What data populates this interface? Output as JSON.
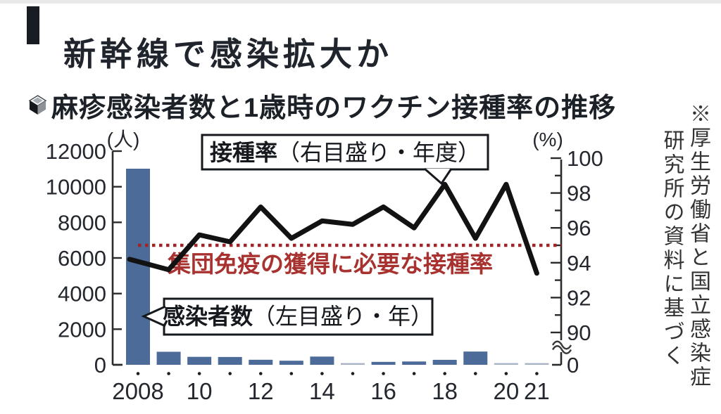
{
  "header": {
    "headline": "新幹線で感染拡大か"
  },
  "chart": {
    "title": "麻疹感染者数と1歳時のワクチン接種率の推移",
    "source_note": {
      "col1": "※厚生労働省と国立感染症",
      "col2": "研究所の資料に基づく"
    }
  },
  "chart_data": {
    "type": "bar",
    "subtype": "bar+line combo, dual axis",
    "title": "麻疹感染者数と1歳時のワクチン接種率の推移",
    "years": [
      2008,
      2009,
      2010,
      2011,
      2012,
      2013,
      2014,
      2015,
      2016,
      2017,
      2018,
      2019,
      2020,
      2021
    ],
    "x_tick_labels": [
      "2008",
      "",
      "10",
      "",
      "12",
      "",
      "14",
      "",
      "16",
      "",
      "18",
      "",
      "20",
      "21"
    ],
    "series": [
      {
        "name": "感染者数",
        "type": "bar",
        "axis": "left",
        "unit": "人",
        "values": [
          11013,
          732,
          447,
          439,
          283,
          229,
          462,
          35,
          165,
          186,
          279,
          744,
          10,
          6
        ]
      },
      {
        "name": "接種率",
        "type": "line",
        "axis": "right",
        "unit": "%",
        "values": [
          94.2,
          93.6,
          95.6,
          95.2,
          97.2,
          95.4,
          96.4,
          96.2,
          97.2,
          96.0,
          98.5,
          95.4,
          98.5,
          93.4
        ]
      }
    ],
    "left_axis": {
      "unit_label": "(人)",
      "min": 0,
      "max": 12000,
      "tick_step": 2000
    },
    "right_axis": {
      "unit_label": "(%)",
      "labeled_ticks": [
        100,
        98,
        96,
        94,
        92,
        90
      ],
      "minor_tick_step": 1,
      "axis_break_to_zero": true,
      "zero_label": "0"
    },
    "threshold": {
      "value": 95,
      "label": "集団免疫の獲得に必要な接種率"
    },
    "annotations": {
      "line_label_bold": "接種率",
      "line_label_rest": "（右目盛り・年度）",
      "bar_label_bold": "感染者数",
      "bar_label_rest": "（左目盛り・年）"
    },
    "colors": {
      "bar": "#4d6b99",
      "bar_faint": "#a8b3c5",
      "line": "#121212",
      "threshold": "#9e2428",
      "threshold_text": "#a8322f",
      "axis": "#2b2b2b"
    },
    "grid": false,
    "legend_position": "inline callout bubbles"
  }
}
